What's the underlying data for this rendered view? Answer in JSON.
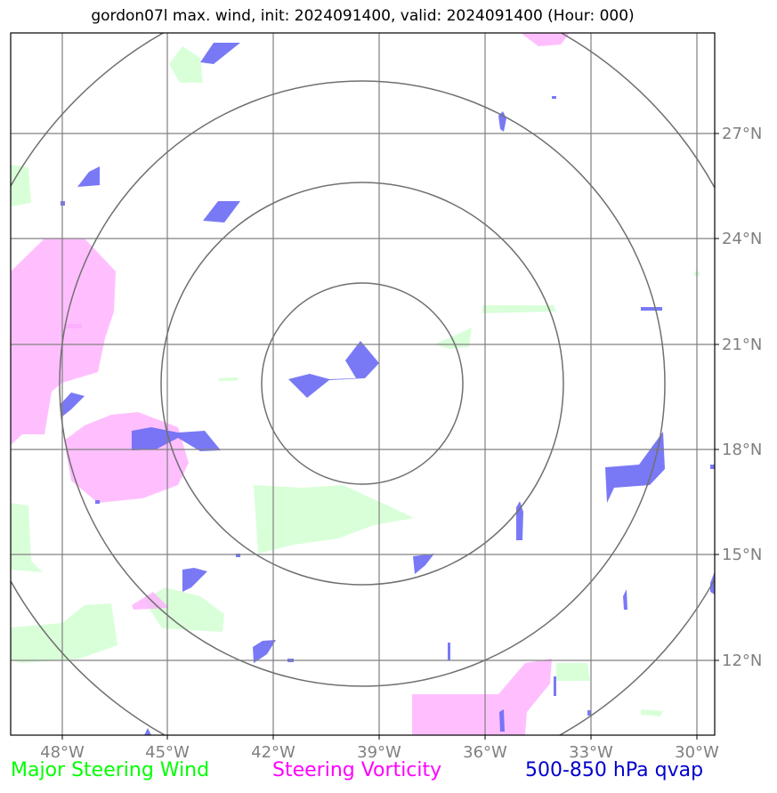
{
  "title": "gordon07l max. wind, init: 2024091400, valid: 2024091400 (Hour: 000)",
  "legend": {
    "wind": "Major Steering Wind",
    "vorticity": "Steering Vorticity",
    "qvap": "500-850 hPa qvap"
  },
  "axes": {
    "lon_labels": [
      "48°W",
      "45°W",
      "42°W",
      "39°W",
      "36°W",
      "33°W",
      "30°W"
    ],
    "lat_labels": [
      "27°N",
      "24°N",
      "21°N",
      "18°N",
      "15°N",
      "12°N"
    ]
  },
  "colors": {
    "wind": "#ccffcc",
    "vorticity": "#ffaaff",
    "qvap": "#6a6af5",
    "grid": "#808080",
    "rings": "#707070"
  }
}
